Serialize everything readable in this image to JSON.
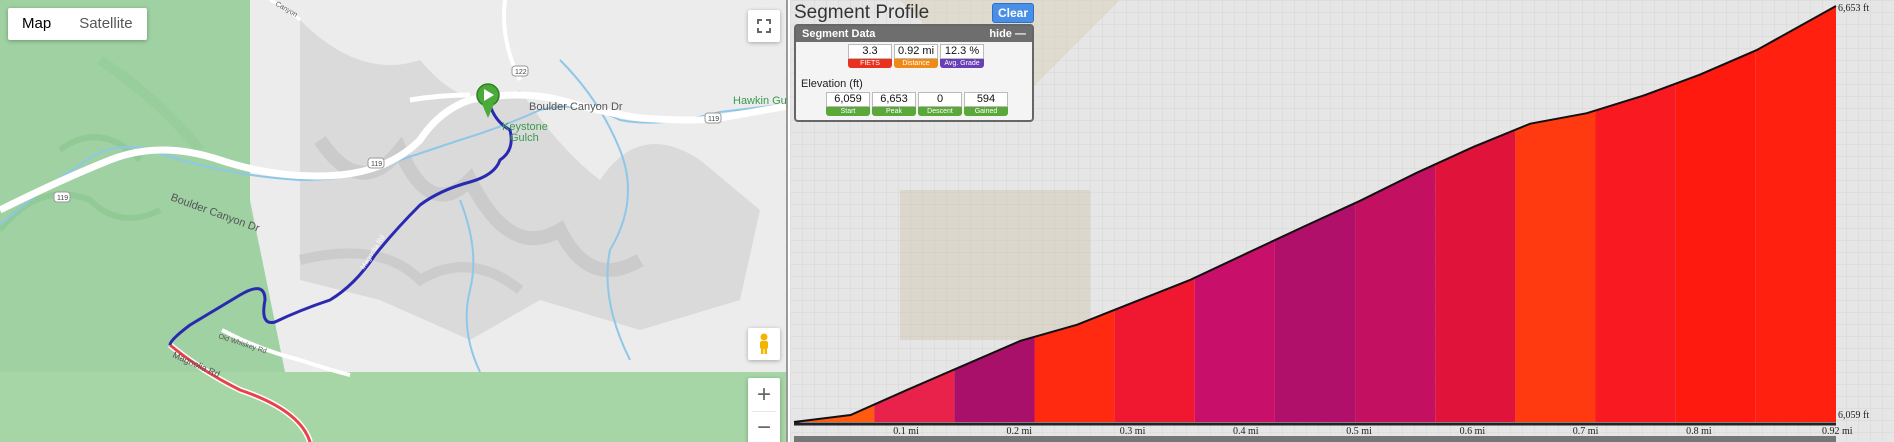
{
  "map": {
    "type_control": {
      "map_label": "Map",
      "satellite_label": "Satellite"
    },
    "road_labels": {
      "boulder_canyon_dr_1": "Boulder Canyon Dr",
      "boulder_canyon_dr_2": "Boulder Canyon Dr",
      "hawkin": "Hawkin Gul",
      "keystone": "Keystone",
      "gulch": "Gulch",
      "old_whiskey": "Old Whiskey Rd",
      "magnolia": "Magnolia Rd",
      "magnolia_upper": "Magnolia Rd",
      "shield_119_a": "119",
      "shield_119_b": "119",
      "shield_119_c": "119",
      "shield_122": "122",
      "canyon_top": "Canyon"
    },
    "zoom_in": "+",
    "zoom_out": "−"
  },
  "profile": {
    "title": "Segment Profile",
    "clear_label": "Clear",
    "segment_data": {
      "header": "Segment Data",
      "hide_label": "hide",
      "fiets": {
        "value": "3.3",
        "label": "FIETS",
        "color": "#e8321f"
      },
      "distance": {
        "value": "0.92 mi",
        "label": "Distance",
        "color": "#f08a16"
      },
      "grade": {
        "value": "12.3 %",
        "label": "Avg. Grade",
        "color": "#6a3fb5"
      },
      "elevation_label": "Elevation (ft)",
      "start": {
        "value": "6,059",
        "label": "Start"
      },
      "peak": {
        "value": "6,653",
        "label": "Peak"
      },
      "descent": {
        "value": "0",
        "label": "Descent"
      },
      "gained": {
        "value": "594",
        "label": "Gained"
      },
      "elev_color": "#5aa83a"
    },
    "axis": {
      "top": "6,653 ft",
      "bottom": "6,059 ft"
    }
  },
  "chart_data": {
    "type": "area",
    "xlabel": "",
    "ylabel": "",
    "x_tick_labels": [
      "0.1 mi",
      "0.2 mi",
      "0.3 mi",
      "0.4 mi",
      "0.5 mi",
      "0.6 mi",
      "0.7 mi",
      "0.8 mi",
      "0.92 mi"
    ],
    "x_ticks": [
      0.1,
      0.2,
      0.3,
      0.4,
      0.5,
      0.6,
      0.7,
      0.8,
      0.92
    ],
    "xlim": [
      0,
      0.92
    ],
    "ylim": [
      6059,
      6653
    ],
    "x": [
      0,
      0.05,
      0.1,
      0.15,
      0.2,
      0.25,
      0.3,
      0.35,
      0.4,
      0.45,
      0.5,
      0.55,
      0.6,
      0.65,
      0.7,
      0.75,
      0.8,
      0.85,
      0.92
    ],
    "y": [
      6059,
      6069,
      6105,
      6140,
      6175,
      6198,
      6230,
      6262,
      6300,
      6338,
      6375,
      6415,
      6452,
      6485,
      6500,
      6525,
      6555,
      6590,
      6653
    ],
    "band_colors": [
      "#ff5a10",
      "#e8224a",
      "#a8106a",
      "#ff2a10",
      "#f01830",
      "#c8106a",
      "#b0106a",
      "#c41060",
      "#e0143a",
      "#ff3a10",
      "#f81a20",
      "#ff1a10",
      "#ff2010"
    ]
  }
}
